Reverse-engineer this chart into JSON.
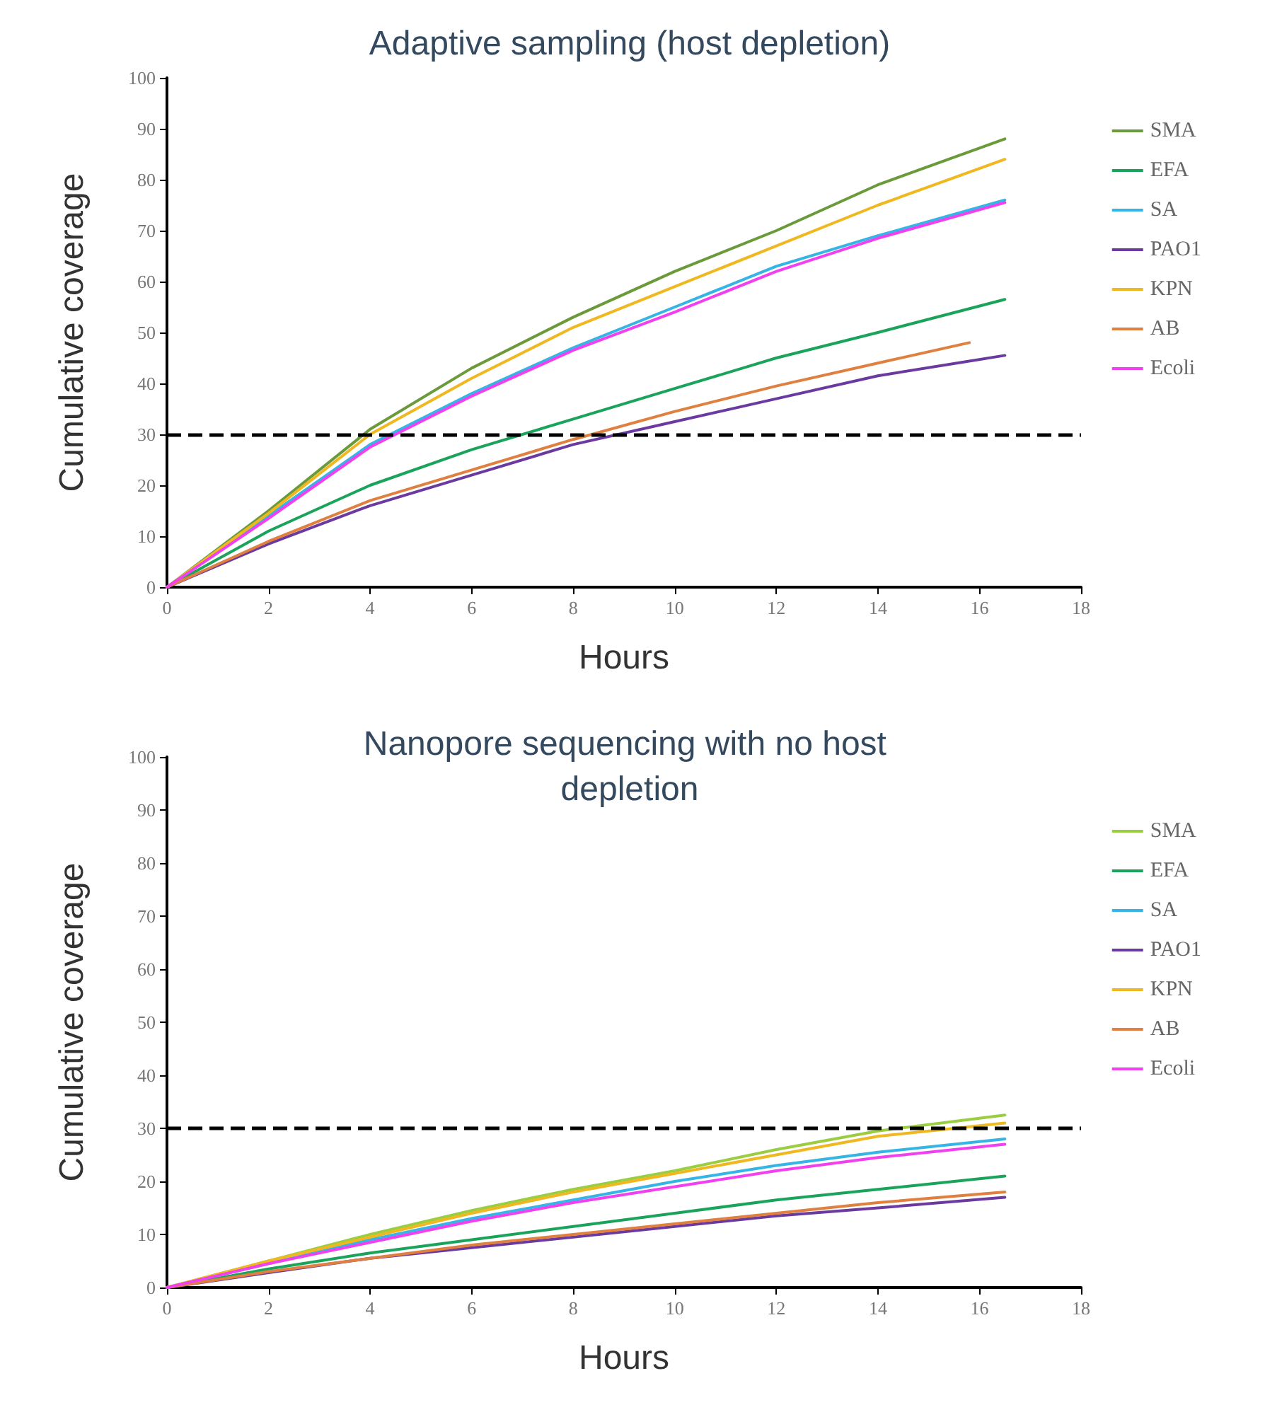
{
  "chart_data": [
    {
      "type": "line",
      "title": "Adaptive sampling (host depletion)",
      "xlabel": "Hours",
      "ylabel": "Cumulative coverage",
      "xlim": [
        0,
        18
      ],
      "xticks": [
        0,
        2,
        4,
        6,
        8,
        10,
        12,
        14,
        16,
        18
      ],
      "ylim": [
        0,
        100
      ],
      "yticks": [
        0,
        10,
        20,
        30,
        40,
        50,
        60,
        70,
        80,
        90,
        100
      ],
      "grid": false,
      "legend": "right",
      "marker": "none",
      "line_style": "solid",
      "ref_lines": [
        {
          "axis": "y",
          "value": 30,
          "color": "#000000",
          "line_style": "dashed"
        }
      ],
      "x": [
        0,
        2,
        4,
        6,
        8,
        10,
        12,
        14,
        16.5
      ],
      "series": [
        {
          "name": "SMA",
          "color": "#6a9a3a",
          "values": [
            0,
            15,
            31,
            43,
            53,
            62,
            70,
            79,
            88
          ]
        },
        {
          "name": "EFA",
          "color": "#1aa35a",
          "values": [
            0,
            11,
            20,
            27,
            33,
            39,
            45,
            50,
            56.5
          ]
        },
        {
          "name": "SA",
          "color": "#35b5e5",
          "values": [
            0,
            14,
            28,
            38,
            47,
            55,
            63,
            69,
            76
          ]
        },
        {
          "name": "PAO1",
          "color": "#6a3aa0",
          "values": [
            0,
            8.5,
            16,
            22,
            28,
            32.5,
            37,
            41.5,
            45.5
          ]
        },
        {
          "name": "KPN",
          "color": "#f0b820",
          "values": [
            0,
            14.5,
            30,
            41,
            51,
            59,
            67,
            75,
            84
          ]
        },
        {
          "name": "AB",
          "color": "#e08040",
          "x": [
            0,
            2,
            4,
            6,
            8,
            10,
            12,
            14,
            15.8
          ],
          "values": [
            0,
            9,
            17,
            23,
            29,
            34.5,
            39.5,
            44,
            48
          ]
        },
        {
          "name": "Ecoli",
          "color": "#f040f0",
          "values": [
            0,
            13.5,
            27.5,
            37.5,
            46.5,
            54,
            62,
            68.5,
            75.5
          ]
        }
      ]
    },
    {
      "type": "line",
      "title": "Nanopore sequencing with no host depletion",
      "xlabel": "Hours",
      "ylabel": "Cumulative coverage",
      "xlim": [
        0,
        18
      ],
      "xticks": [
        0,
        2,
        4,
        6,
        8,
        10,
        12,
        14,
        16,
        18
      ],
      "ylim": [
        0,
        100
      ],
      "yticks": [
        0,
        10,
        20,
        30,
        40,
        50,
        60,
        70,
        80,
        90,
        100
      ],
      "grid": false,
      "legend": "right",
      "marker": "none",
      "line_style": "solid",
      "ref_lines": [
        {
          "axis": "y",
          "value": 30,
          "color": "#000000",
          "line_style": "dashed"
        }
      ],
      "x": [
        0,
        2,
        4,
        6,
        8,
        10,
        12,
        14,
        16.5
      ],
      "series": [
        {
          "name": "SMA",
          "color": "#9acd40",
          "values": [
            0,
            5,
            10,
            14.5,
            18.5,
            22,
            26,
            29.5,
            32.5
          ]
        },
        {
          "name": "EFA",
          "color": "#1aa35a",
          "values": [
            0,
            3.5,
            6.5,
            9,
            11.5,
            14,
            16.5,
            18.5,
            21
          ]
        },
        {
          "name": "SA",
          "color": "#35b5e5",
          "values": [
            0,
            4.5,
            9,
            13,
            16.5,
            20,
            23,
            25.5,
            28
          ]
        },
        {
          "name": "PAO1",
          "color": "#6a3aa0",
          "values": [
            0,
            2.8,
            5.5,
            7.5,
            9.5,
            11.5,
            13.5,
            15,
            17
          ]
        },
        {
          "name": "KPN",
          "color": "#f0b820",
          "values": [
            0,
            5,
            9.5,
            14,
            18,
            21.5,
            25,
            28.5,
            31
          ]
        },
        {
          "name": "AB",
          "color": "#e08040",
          "values": [
            0,
            3,
            5.5,
            8,
            10,
            12,
            14,
            16,
            18
          ]
        },
        {
          "name": "Ecoli",
          "color": "#f040f0",
          "values": [
            0,
            4.5,
            8.5,
            12.5,
            16,
            19,
            22,
            24.5,
            27
          ]
        }
      ]
    }
  ]
}
